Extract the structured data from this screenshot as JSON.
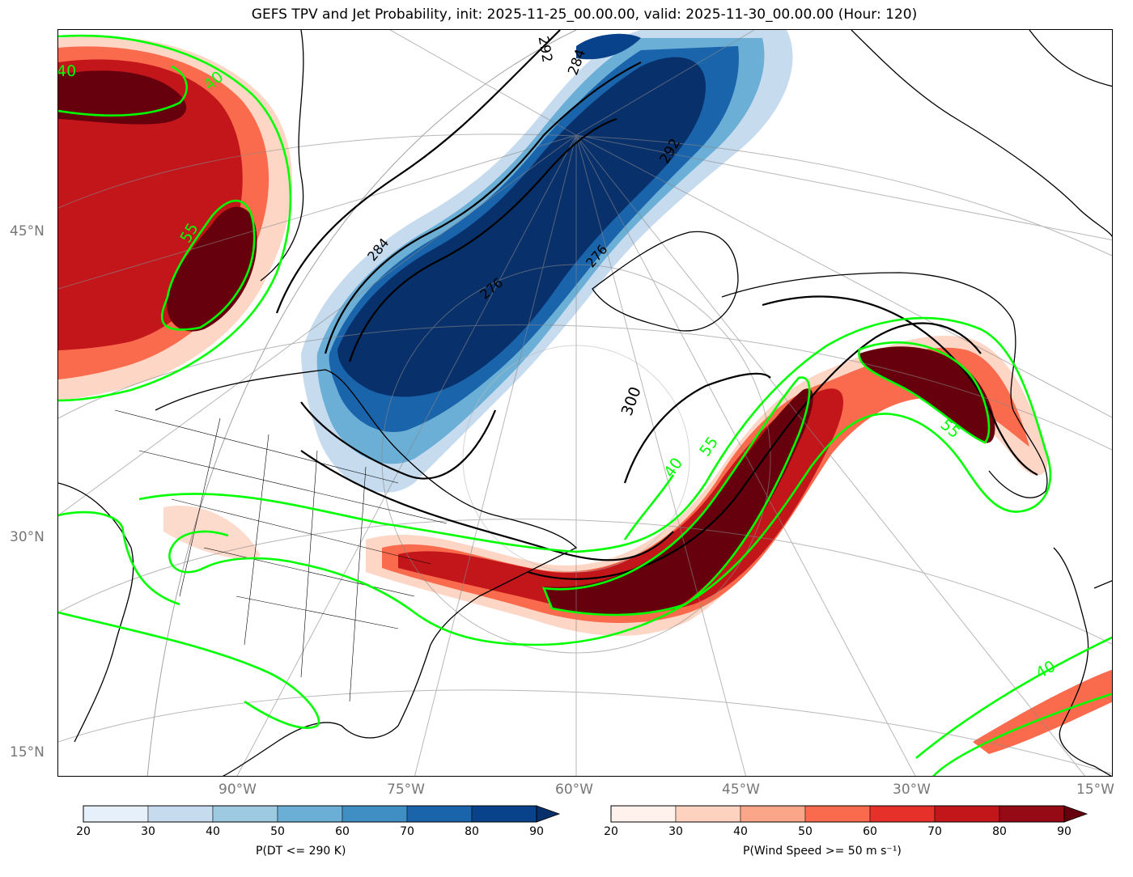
{
  "title": "GEFS TPV and Jet Probability, init: 2025-11-25_00.00.00, valid: 2025-11-30_00.00.00 (Hour: 120)",
  "lat_labels": [
    "45°N",
    "30°N",
    "15°N"
  ],
  "lon_labels": [
    "90°W",
    "75°W",
    "60°W",
    "45°W",
    "30°W",
    "15°W"
  ],
  "contour_labels": {
    "dt": [
      "300",
      "292",
      "284",
      "276",
      "292",
      "284",
      "276"
    ],
    "jet": [
      "40",
      "55",
      "40",
      "55",
      "55",
      "40",
      "40"
    ]
  },
  "colorbars": [
    {
      "label": "P(DT <= 290 K)",
      "ticks": [
        "20",
        "30",
        "40",
        "50",
        "60",
        "70",
        "80",
        "90"
      ],
      "colors": [
        "#e6f0fa",
        "#c7dbef",
        "#9dc9e1",
        "#6baed6",
        "#3f8fc5",
        "#1a64ab",
        "#08428a"
      ],
      "extend_color": "#08306b"
    },
    {
      "label": "P(Wind Speed >= 50 m s⁻¹)",
      "ticks": [
        "20",
        "30",
        "40",
        "50",
        "60",
        "70",
        "80",
        "90"
      ],
      "colors": [
        "#fff2ec",
        "#fdd2bf",
        "#fca689",
        "#f96b4c",
        "#e6302a",
        "#c2161b",
        "#950a14"
      ],
      "extend_color": "#67000d"
    }
  ],
  "colors": {
    "jet_contour": "#00ff00",
    "dt_contour": "#000000",
    "graticule": "#888888"
  }
}
